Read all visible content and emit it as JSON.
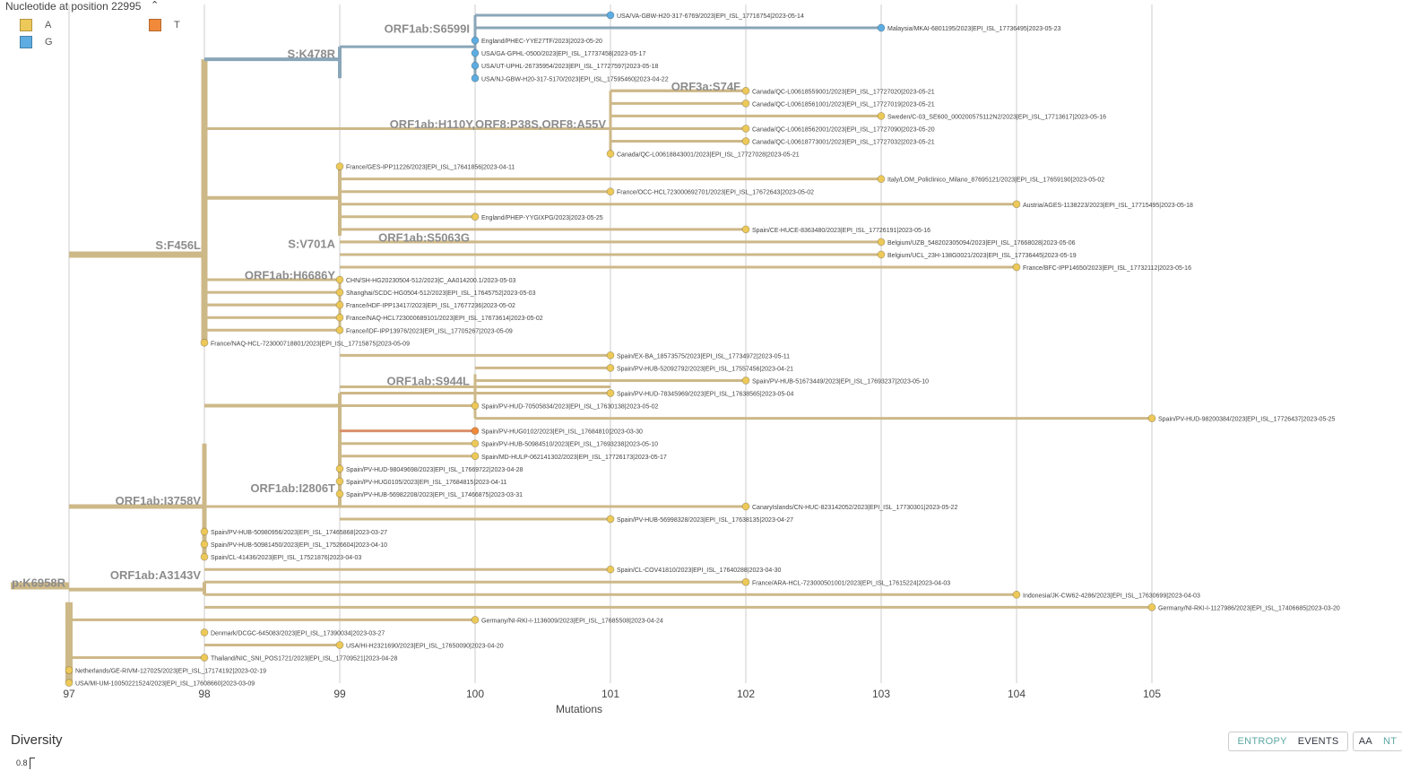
{
  "legend": {
    "title": "Nucleotide at position 22995",
    "items": [
      {
        "label": "A",
        "color": "#EDC959"
      },
      {
        "label": "T",
        "color": "#F08A3A"
      },
      {
        "label": "G",
        "color": "#5DADE2"
      }
    ]
  },
  "colors": {
    "branch": "#CDB888",
    "branch_blue": "#8AA6B8",
    "branch_orange": "#D9906A",
    "grid": "#dddddd"
  },
  "axis": {
    "title": "Mutations",
    "ticks": [
      "97",
      "98",
      "99",
      "100",
      "101",
      "102",
      "103",
      "104",
      "105"
    ],
    "range": [
      97,
      105
    ]
  },
  "mutation_labels": [
    "p:K6958R",
    "S:F456L",
    "S:K478R",
    "ORF1ab:S6599I",
    "ORF3a:S74F",
    "ORF1ab:H110Y,ORF8:P38S,ORF8:A55V",
    "S:V701A",
    "ORF1ab:S5063G",
    "ORF1ab:H6686Y",
    "ORF1ab:S944L",
    "ORF1ab:I3758V",
    "ORF1ab:I2806T",
    "ORF1ab:A3143V"
  ],
  "tips": [
    {
      "name": "USA/VA-GBW-H20-317-6769/2023|EPI_ISL_17716754|2023-05-14",
      "div": 101,
      "state": "G"
    },
    {
      "name": "Malaysia/MKAI-6801195/2023|EPI_ISL_17736495|2023-05-23",
      "div": 103,
      "state": "G"
    },
    {
      "name": "England/PHEC-YYE27TF/2023|2023-05-20",
      "div": 100,
      "state": "G"
    },
    {
      "name": "USA/GA-GPHL-0500/2023|EPI_ISL_17737458|2023-05-17",
      "div": 100,
      "state": "G"
    },
    {
      "name": "USA/UT-UPHL-26735954/2023|EPI_ISL_17727597|2023-05-18",
      "div": 100,
      "state": "G"
    },
    {
      "name": "USA/NJ-GBW-H20-317-5170/2023|EPI_ISL_17595460|2023-04-22",
      "div": 100,
      "state": "G"
    },
    {
      "name": "Canada/QC-L00618559001/2023|EPI_ISL_17727020|2023-05-21",
      "div": 102,
      "state": "A"
    },
    {
      "name": "Canada/QC-L00618561001/2023|EPI_ISL_17727019|2023-05-21",
      "div": 102,
      "state": "A"
    },
    {
      "name": "Sweden/C-03_SE600_000200575112N2/2023|EPI_ISL_17713617|2023-05-16",
      "div": 103,
      "state": "A"
    },
    {
      "name": "Canada/QC-L00618562001/2023|EPI_ISL_17727090|2023-05-20",
      "div": 102,
      "state": "A"
    },
    {
      "name": "Canada/QC-L00618773001/2023|EPI_ISL_17727032|2023-05-21",
      "div": 102,
      "state": "A"
    },
    {
      "name": "Canada/QC-L00618843001/2023|EPI_ISL_17727028|2023-05-21",
      "div": 101,
      "state": "A"
    },
    {
      "name": "France/GES-IPP11226/2023|EPI_ISL_17641856|2023-04-11",
      "div": 99,
      "state": "A"
    },
    {
      "name": "Italy/LOM_Policlinico_Milano_87695121/2023|EPI_ISL_17659190|2023-05-02",
      "div": 103,
      "state": "A"
    },
    {
      "name": "France/OCC-HCL723000692701/2023|EPI_ISL_17672643|2023-05-02",
      "div": 101,
      "state": "A"
    },
    {
      "name": "Austria/AGES-1138223/2023|EPI_ISL_17715495|2023-05-18",
      "div": 104,
      "state": "A"
    },
    {
      "name": "England/PHEP-YYGIXPG/2023|2023-05-25",
      "div": 100,
      "state": "A"
    },
    {
      "name": "Spain/CE-HUCE-8363480/2023|EPI_ISL_17726191|2023-05-16",
      "div": 102,
      "state": "A"
    },
    {
      "name": "Belgium/UZB_548202305094/2023|EPI_ISL_17668028|2023-05-06",
      "div": 103,
      "state": "A"
    },
    {
      "name": "Belgium/UCL_23H-138G0021/2023|EPI_ISL_17736445|2023-05-19",
      "div": 103,
      "state": "A"
    },
    {
      "name": "France/BFC-IPP14650/2023|EPI_ISL_17732112|2023-05-16",
      "div": 104,
      "state": "A"
    },
    {
      "name": "CHN/SH-HG20230504-512/2023|C_AA014200.1/2023-05-03",
      "div": 99,
      "state": "A"
    },
    {
      "name": "Shanghai/SCDC-HG0504-512/2023|EPI_ISL_17645752|2023-05-03",
      "div": 99,
      "state": "A"
    },
    {
      "name": "France/HDF-IPP13417/2023|EPI_ISL_17677236|2023-05-02",
      "div": 99,
      "state": "A"
    },
    {
      "name": "France/NAQ-HCL723000689101/2023|EPI_ISL_17673614|2023-05-02",
      "div": 99,
      "state": "A"
    },
    {
      "name": "France/IDF-IPP13976/2023|EPI_ISL_17705267|2023-05-09",
      "div": 99,
      "state": "A"
    },
    {
      "name": "France/NAQ-HCL-723000718801/2023|EPI_ISL_17715875|2023-05-09",
      "div": 98,
      "state": "A"
    },
    {
      "name": "Spain/EX-BA_18573575/2023|EPI_ISL_17734972|2023-05-11",
      "div": 101,
      "state": "A"
    },
    {
      "name": "Spain/PV-HUB-52092792/2023|EPI_ISL_17557456|2023-04-21",
      "div": 101,
      "state": "A"
    },
    {
      "name": "Spain/PV-HUB-51673449/2023|EPI_ISL_17693237|2023-05-10",
      "div": 102,
      "state": "A"
    },
    {
      "name": "Spain/PV-HUD-78345969/2023|EPI_ISL_17638565|2023-05-04",
      "div": 101,
      "state": "A"
    },
    {
      "name": "Spain/PV-HUD-70505834/2023|EPI_ISL_17630138|2023-05-02",
      "div": 100,
      "state": "A"
    },
    {
      "name": "Spain/PV-HUD-98200384/2023|EPI_ISL_17726437|2023-05-25",
      "div": 105,
      "state": "A"
    },
    {
      "name": "Spain/PV-HUG0102/2023|EPI_ISL_17684810|2023-03-30",
      "div": 100,
      "state": "T"
    },
    {
      "name": "Spain/PV-HUB-50984510/2023|EPI_ISL_17693238|2023-05-10",
      "div": 100,
      "state": "A"
    },
    {
      "name": "Spain/MD-HULP-062141302/2023|EPI_ISL_17726173|2023-05-17",
      "div": 100,
      "state": "A"
    },
    {
      "name": "Spain/PV-HUD-98049698/2023|EPI_ISL_17669722|2023-04-28",
      "div": 99,
      "state": "A"
    },
    {
      "name": "Spain/PV-HUG0105/2023|EPI_ISL_17684815|2023-04-11",
      "div": 99,
      "state": "A"
    },
    {
      "name": "Spain/PV-HUB-56982208/2023|EPI_ISL_17466875|2023-03-31",
      "div": 99,
      "state": "A"
    },
    {
      "name": "CanaryIslands/CN-HUC-823142052/2023|EPI_ISL_17730301|2023-05-22",
      "div": 102,
      "state": "A"
    },
    {
      "name": "Spain/PV-HUB-56998328/2023|EPI_ISL_17638135|2023-04-27",
      "div": 101,
      "state": "A"
    },
    {
      "name": "Spain/PV-HUB-50980956/2023|EPI_ISL_17465868|2023-03-27",
      "div": 98,
      "state": "A"
    },
    {
      "name": "Spain/PV-HUB-50981450/2023|EPI_ISL_17526604|2023-04-10",
      "div": 98,
      "state": "A"
    },
    {
      "name": "Spain/CL-41436/2023|EPI_ISL_17521876|2023-04-03",
      "div": 98,
      "state": "A"
    },
    {
      "name": "Spain/CL-COV41810/2023|EPI_ISL_17640288|2023-04-30",
      "div": 101,
      "state": "A"
    },
    {
      "name": "France/ARA-HCL-723000501001/2023|EPI_ISL_17615224|2023-04-03",
      "div": 102,
      "state": "A"
    },
    {
      "name": "Indonesia/JK-CW62-4286/2023|EPI_ISL_17630699|2023-04-03",
      "div": 104,
      "state": "A"
    },
    {
      "name": "Germany/NI-RKI-I-1127986/2023|EPI_ISL_17406685|2023-03-20",
      "div": 105,
      "state": "A"
    },
    {
      "name": "Germany/NI-RKI-I-1136009/2023|EPI_ISL_17685508|2023-04-24",
      "div": 100,
      "state": "A"
    },
    {
      "name": "Denmark/DCGC-645083/2023|EPI_ISL_17390034|2023-03-27",
      "div": 98,
      "state": "A"
    },
    {
      "name": "USA/HI-H2321690/2023|EPI_ISL_17650090|2023-04-20",
      "div": 99,
      "state": "A"
    },
    {
      "name": "Thailand/NIC_SNI_POS1721/2023|EPI_ISL_17709521|2023-04-28",
      "div": 98,
      "state": "A"
    },
    {
      "name": "Netherlands/GE-RIVM-127025/2023|EPI_ISL_17174192|2023-02-19",
      "div": 97,
      "state": "A"
    },
    {
      "name": "USA/MI-UM-10050221524/2023|EPI_ISL_17608660|2023-03-09",
      "div": 97,
      "state": "A"
    }
  ],
  "diversity": {
    "title": "Diversity",
    "ytick": "0.8"
  },
  "controls": {
    "entropy": "ENTROPY",
    "events": "EVENTS",
    "aa": "AA",
    "nt": "NT"
  }
}
